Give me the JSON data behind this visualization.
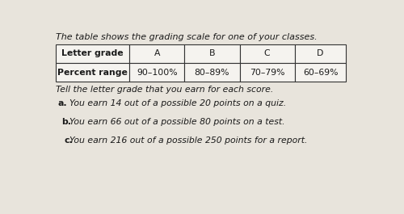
{
  "title": "The table shows the grading scale for one of your classes.",
  "table_headers": [
    "Letter grade",
    "A",
    "B",
    "C",
    "D"
  ],
  "table_row_label": "Percent range",
  "table_row_values": [
    "90–100%",
    "80–89%",
    "70–79%",
    "60–69%"
  ],
  "instruction": "Tell the letter grade that you earn for each score.",
  "items": [
    "You earn 14 out of a possible 20 points on a quiz.",
    "You earn 66 out of a possible 80 points on a test.",
    "You earn 216 out of a possible 250 points for a report."
  ],
  "item_labels": [
    "a.",
    "b.",
    "c."
  ],
  "bg_color": "#e8e4dc",
  "table_cell_bg": "#f5f3ef",
  "table_label_bg": "#f5f3ef",
  "border_color": "#333333",
  "text_color": "#1a1a1a",
  "font_size_title": 8.0,
  "font_size_table": 7.8,
  "font_size_body": 7.8
}
